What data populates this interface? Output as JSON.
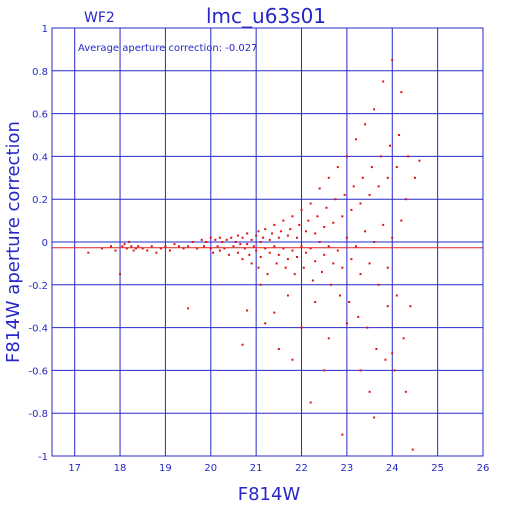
{
  "chart_data": {
    "type": "scatter",
    "title": "lmc_u63s01",
    "subtitle": "WF2",
    "annotation": "Average aperture correction: -0.027",
    "xlabel": "F814W",
    "ylabel": "F814W aperture correction",
    "xlim": [
      16.5,
      26
    ],
    "ylim": [
      -1,
      1
    ],
    "x_ticks": [
      17,
      18,
      19,
      20,
      21,
      22,
      23,
      24,
      25,
      26
    ],
    "y_ticks": [
      -1,
      -0.8,
      -0.6,
      -0.4,
      -0.2,
      0,
      0.2,
      0.4,
      0.6,
      0.8,
      1
    ],
    "x_tick_labels": [
      "17",
      "18",
      "19",
      "20",
      "21",
      "22",
      "23",
      "24",
      "25",
      "26"
    ],
    "y_tick_labels": [
      "-1",
      "-0.8",
      "-0.6",
      "-0.4",
      "-0.2",
      "0",
      "0.2",
      "0.4",
      "0.6",
      "0.8",
      "1"
    ],
    "grid": true,
    "reference_lines": [
      {
        "y": 0,
        "color": "#2828c8"
      },
      {
        "y": -0.027,
        "color": "#e02020"
      }
    ],
    "points_color": "#e01010",
    "axis_color": "#2828c8",
    "points": [
      [
        17.3,
        -0.05
      ],
      [
        17.6,
        -0.03
      ],
      [
        17.8,
        -0.02
      ],
      [
        17.9,
        -0.04
      ],
      [
        18.0,
        -0.15
      ],
      [
        18.05,
        -0.02
      ],
      [
        18.1,
        -0.01
      ],
      [
        18.15,
        -0.03
      ],
      [
        18.2,
        0.0
      ],
      [
        18.25,
        -0.02
      ],
      [
        18.3,
        -0.04
      ],
      [
        18.35,
        -0.03
      ],
      [
        18.4,
        -0.02
      ],
      [
        18.5,
        -0.03
      ],
      [
        18.6,
        -0.04
      ],
      [
        18.7,
        -0.02
      ],
      [
        18.8,
        -0.05
      ],
      [
        18.9,
        -0.03
      ],
      [
        19.0,
        -0.02
      ],
      [
        19.1,
        -0.04
      ],
      [
        19.2,
        -0.01
      ],
      [
        19.3,
        -0.02
      ],
      [
        19.4,
        -0.03
      ],
      [
        19.5,
        -0.31
      ],
      [
        19.5,
        -0.02
      ],
      [
        19.6,
        0.0
      ],
      [
        19.7,
        -0.03
      ],
      [
        19.8,
        0.01
      ],
      [
        19.85,
        -0.02
      ],
      [
        19.9,
        0.0
      ],
      [
        20.0,
        -0.03
      ],
      [
        20.0,
        0.02
      ],
      [
        20.05,
        -0.05
      ],
      [
        20.1,
        0.01
      ],
      [
        20.15,
        -0.02
      ],
      [
        20.2,
        -0.04
      ],
      [
        20.2,
        0.02
      ],
      [
        20.25,
        0.0
      ],
      [
        20.3,
        -0.03
      ],
      [
        20.35,
        0.01
      ],
      [
        20.4,
        -0.06
      ],
      [
        20.45,
        0.02
      ],
      [
        20.5,
        -0.02
      ],
      [
        20.55,
        0.0
      ],
      [
        20.6,
        -0.05
      ],
      [
        20.6,
        0.03
      ],
      [
        20.65,
        -0.01
      ],
      [
        20.7,
        -0.08
      ],
      [
        20.7,
        0.02
      ],
      [
        20.75,
        -0.03
      ],
      [
        20.8,
        0.04
      ],
      [
        20.8,
        -0.01
      ],
      [
        20.85,
        -0.06
      ],
      [
        20.9,
        0.01
      ],
      [
        20.9,
        -0.1
      ],
      [
        20.95,
        -0.02
      ],
      [
        21.0,
        0.03
      ],
      [
        21.0,
        -0.04
      ],
      [
        21.05,
        0.05
      ],
      [
        21.05,
        -0.12
      ],
      [
        21.1,
        0.0
      ],
      [
        21.1,
        -0.07
      ],
      [
        21.15,
        0.02
      ],
      [
        21.2,
        -0.03
      ],
      [
        21.2,
        0.06
      ],
      [
        21.25,
        -0.15
      ],
      [
        21.3,
        0.01
      ],
      [
        21.3,
        -0.05
      ],
      [
        21.35,
        0.04
      ],
      [
        21.4,
        -0.02
      ],
      [
        21.4,
        0.08
      ],
      [
        21.45,
        -0.1
      ],
      [
        21.5,
        0.02
      ],
      [
        21.5,
        -0.06
      ],
      [
        21.55,
        0.05
      ],
      [
        21.6,
        -0.03
      ],
      [
        21.6,
        0.1
      ],
      [
        21.65,
        -0.12
      ],
      [
        21.7,
        0.03
      ],
      [
        21.7,
        -0.08
      ],
      [
        21.75,
        0.06
      ],
      [
        21.8,
        -0.04
      ],
      [
        21.8,
        0.12
      ],
      [
        21.85,
        -0.15
      ],
      [
        21.9,
        0.02
      ],
      [
        21.9,
        -0.07
      ],
      [
        21.95,
        0.08
      ],
      [
        22.0,
        -0.02
      ],
      [
        22.0,
        0.15
      ],
      [
        22.05,
        -0.12
      ],
      [
        22.1,
        0.05
      ],
      [
        22.1,
        -0.05
      ],
      [
        22.15,
        0.1
      ],
      [
        22.2,
        -0.03
      ],
      [
        22.2,
        0.18
      ],
      [
        22.25,
        -0.18
      ],
      [
        22.3,
        0.04
      ],
      [
        22.3,
        -0.09
      ],
      [
        22.35,
        0.12
      ],
      [
        22.4,
        0.0
      ],
      [
        22.4,
        0.25
      ],
      [
        22.45,
        -0.14
      ],
      [
        22.5,
        0.07
      ],
      [
        22.5,
        -0.06
      ],
      [
        22.55,
        0.16
      ],
      [
        22.6,
        -0.02
      ],
      [
        22.6,
        0.3
      ],
      [
        22.65,
        -0.2
      ],
      [
        22.7,
        0.09
      ],
      [
        22.7,
        -0.1
      ],
      [
        22.75,
        0.2
      ],
      [
        22.8,
        -0.04
      ],
      [
        22.8,
        0.35
      ],
      [
        22.85,
        -0.25
      ],
      [
        22.9,
        0.12
      ],
      [
        22.9,
        -0.12
      ],
      [
        22.95,
        0.22
      ],
      [
        23.0,
        0.02
      ],
      [
        23.0,
        0.4
      ],
      [
        23.05,
        -0.28
      ],
      [
        23.1,
        0.15
      ],
      [
        23.1,
        -0.08
      ],
      [
        23.15,
        0.26
      ],
      [
        23.2,
        -0.02
      ],
      [
        23.2,
        0.48
      ],
      [
        23.25,
        -0.35
      ],
      [
        23.3,
        0.18
      ],
      [
        23.3,
        -0.15
      ],
      [
        23.35,
        0.3
      ],
      [
        23.4,
        0.05
      ],
      [
        23.4,
        0.55
      ],
      [
        23.45,
        -0.4
      ],
      [
        23.5,
        0.22
      ],
      [
        23.5,
        -0.1
      ],
      [
        23.55,
        0.35
      ],
      [
        23.6,
        0.0
      ],
      [
        23.6,
        0.62
      ],
      [
        23.65,
        -0.5
      ],
      [
        23.7,
        0.26
      ],
      [
        23.7,
        -0.2
      ],
      [
        23.75,
        0.4
      ],
      [
        23.8,
        0.08
      ],
      [
        23.8,
        0.75
      ],
      [
        23.85,
        -0.55
      ],
      [
        23.9,
        0.3
      ],
      [
        23.9,
        -0.12
      ],
      [
        23.95,
        0.45
      ],
      [
        24.0,
        0.02
      ],
      [
        24.0,
        0.85
      ],
      [
        24.05,
        -0.6
      ],
      [
        24.1,
        0.35
      ],
      [
        24.1,
        -0.25
      ],
      [
        24.15,
        0.5
      ],
      [
        24.2,
        0.1
      ],
      [
        24.2,
        0.7
      ],
      [
        24.25,
        -0.45
      ],
      [
        24.3,
        0.2
      ],
      [
        24.3,
        -0.7
      ],
      [
        24.35,
        0.4
      ],
      [
        24.4,
        -0.3
      ],
      [
        24.45,
        -0.97
      ],
      [
        24.5,
        0.3
      ],
      [
        24.6,
        0.38
      ],
      [
        21.2,
        -0.38
      ],
      [
        21.5,
        -0.5
      ],
      [
        21.8,
        -0.55
      ],
      [
        22.2,
        -0.75
      ],
      [
        22.5,
        -0.6
      ],
      [
        22.9,
        -0.9
      ],
      [
        23.3,
        -0.6
      ],
      [
        23.6,
        -0.82
      ],
      [
        23.9,
        -0.3
      ],
      [
        20.7,
        -0.48
      ],
      [
        20.8,
        -0.32
      ],
      [
        21.1,
        -0.2
      ],
      [
        21.4,
        -0.33
      ],
      [
        21.7,
        -0.25
      ],
      [
        22.0,
        -0.4
      ],
      [
        22.3,
        -0.28
      ],
      [
        22.6,
        -0.45
      ],
      [
        23.0,
        -0.38
      ],
      [
        23.5,
        -0.7
      ],
      [
        24.0,
        -0.52
      ]
    ]
  }
}
